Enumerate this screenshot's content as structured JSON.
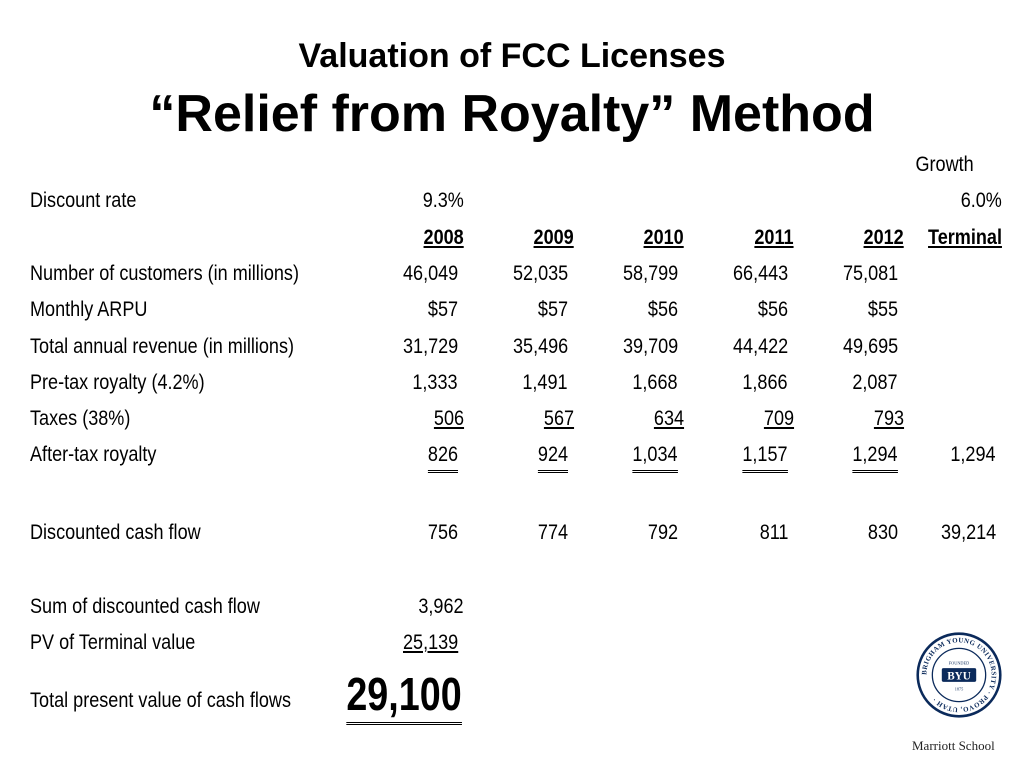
{
  "title": "Valuation of FCC Licenses",
  "subtitle": "“Relief from Royalty” Method",
  "growth_label": "Growth",
  "discount_rate": {
    "label": "Discount rate",
    "value": "9.3%",
    "growth": "6.0%"
  },
  "years": [
    "2008",
    "2009",
    "2010",
    "2011",
    "2012"
  ],
  "terminal_label": "Terminal",
  "rows": {
    "customers": {
      "label": "Number of customers (in millions)",
      "values": [
        "46,049",
        "52,035",
        "58,799",
        "66,443",
        "75,081"
      ]
    },
    "arpu": {
      "label": "Monthly ARPU",
      "values": [
        "$57",
        "$57",
        "$56",
        "$56",
        "$55"
      ]
    },
    "revenue": {
      "label": "Total annual revenue (in millions)",
      "values": [
        "31,729",
        "35,496",
        "39,709",
        "44,422",
        "49,695"
      ]
    },
    "pretax": {
      "label": "Pre-tax royalty (4.2%)",
      "values": [
        "1,333",
        "1,491",
        "1,668",
        "1,866",
        "2,087"
      ]
    },
    "taxes": {
      "label": "Taxes (38%)",
      "values": [
        "506",
        "567",
        "634",
        "709",
        "793"
      ]
    },
    "aftertax": {
      "label": "After-tax royalty",
      "values": [
        "826",
        "924",
        "1,034",
        "1,157",
        "1,294"
      ],
      "terminal": "1,294"
    },
    "dcf": {
      "label": "Discounted cash flow",
      "values": [
        "756",
        "774",
        "792",
        "811",
        "830"
      ],
      "terminal": "39,214"
    }
  },
  "sum_dcf": {
    "label": "Sum of discounted cash flow",
    "value": "3,962"
  },
  "pv_terminal": {
    "label": "PV of Terminal value",
    "value": "25,139"
  },
  "total": {
    "label": "Total present value of cash flows",
    "value": "29,100"
  },
  "logo": {
    "icon": "byu-seal-icon",
    "text": "BYU",
    "ring_text": "BRIGHAM YOUNG UNIVERSITY · PROVO, UTAH ·",
    "year": "1875",
    "small": "FOUNDED",
    "color": "#0b2a5b"
  },
  "school": "Marriott School"
}
